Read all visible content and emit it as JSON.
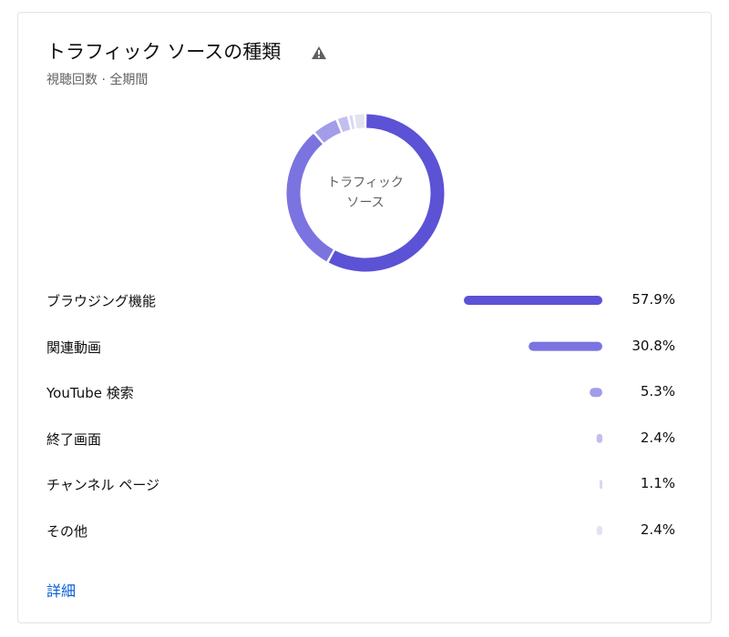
{
  "chart_data": {
    "type": "donut",
    "title": "トラフィック ソースの種類",
    "subtitle": "視聴回数 · 全期間",
    "center_label": "トラフィック ソース",
    "categories": [
      "ブラウジング機能",
      "関連動画",
      "YouTube 検索",
      "終了画面",
      "チャンネル ページ",
      "その他"
    ],
    "values": [
      57.9,
      30.8,
      5.3,
      2.4,
      1.1,
      2.4
    ],
    "value_labels": [
      "57.9%",
      "30.8%",
      "5.3%",
      "2.4%",
      "1.1%",
      "2.4%"
    ],
    "colors": [
      "#5b52d6",
      "#7b73e0",
      "#a29ce9",
      "#c2bef1",
      "#d9d7f6",
      "#e3e2f0"
    ],
    "link": "詳細"
  }
}
